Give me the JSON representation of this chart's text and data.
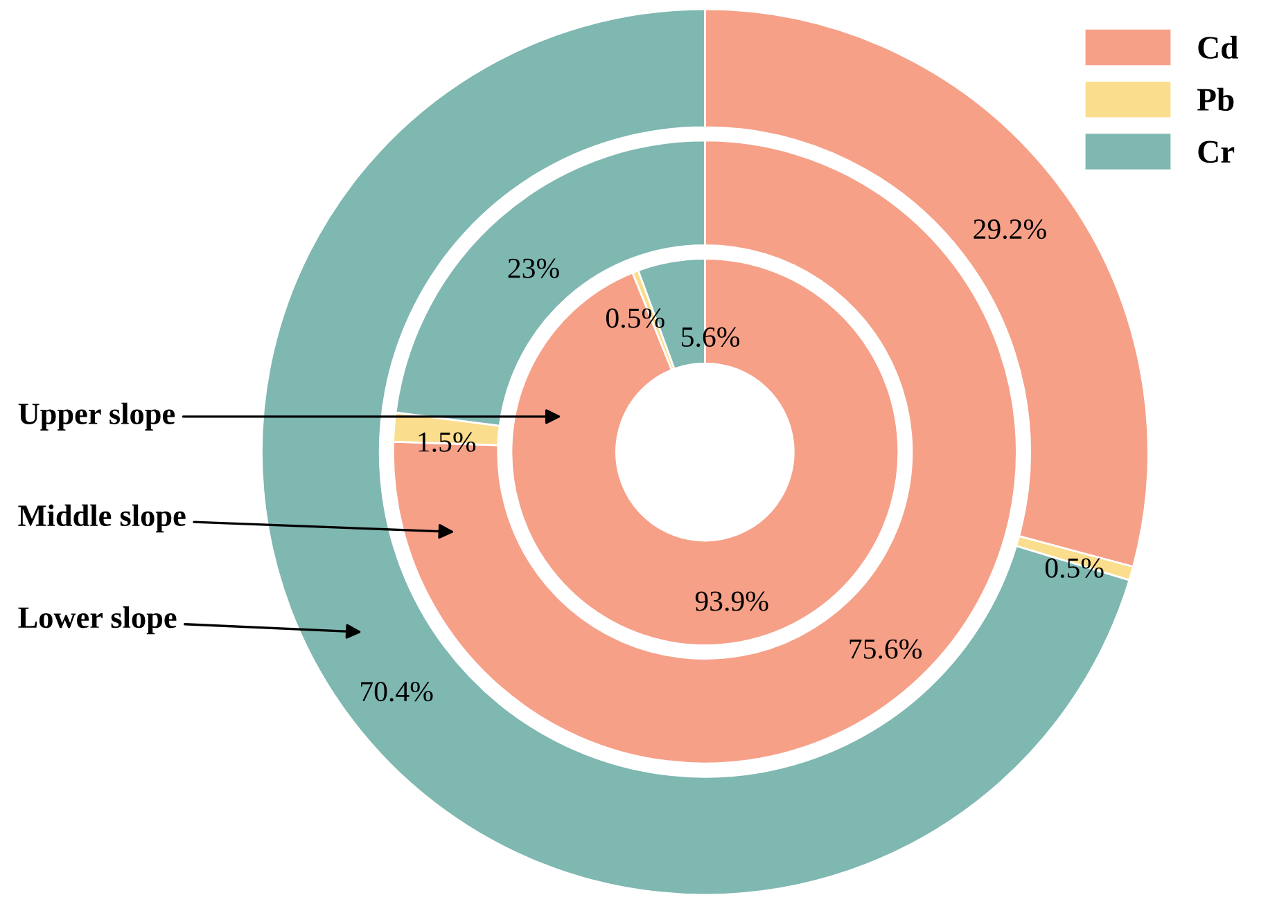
{
  "chart_data": {
    "type": "donut",
    "categories": [
      "Cd",
      "Pb",
      "Cr"
    ],
    "colors": [
      "#f6a088",
      "#fbdd8e",
      "#7fb7b1"
    ],
    "series": [
      {
        "name": "Upper slope",
        "values": [
          93.9,
          0.5,
          5.6
        ],
        "value_labels": [
          "93.9%",
          "0.5%",
          "5.6%"
        ]
      },
      {
        "name": "Middle slope",
        "values": [
          75.6,
          1.5,
          23
        ],
        "value_labels": [
          "75.6%",
          "1.5%",
          "23%"
        ]
      },
      {
        "name": "Lower slope",
        "values": [
          29.2,
          0.5,
          70.4
        ],
        "value_labels": [
          "29.2%",
          "0.5%",
          "70.4%"
        ]
      }
    ],
    "legend": "top right"
  }
}
